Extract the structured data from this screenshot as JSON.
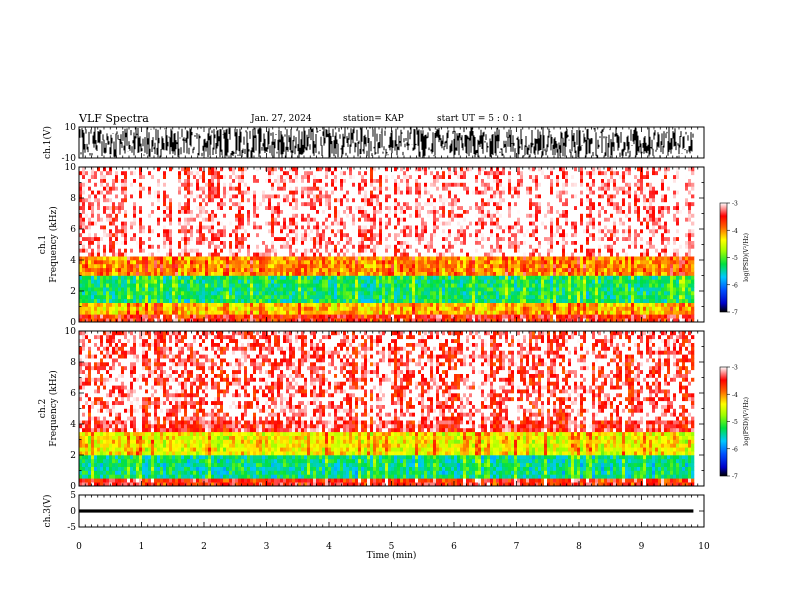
{
  "header": {
    "title": "VLF Spectra",
    "date": "Jan. 27, 2024",
    "station": "station= KAP",
    "start_ut": "start  UT =  5 : 0  : 1"
  },
  "chart_data": [
    {
      "type": "line",
      "name": "ch1-waveform",
      "ylabel": "ch.1(V)",
      "ylim": [
        -10,
        10
      ],
      "yticks": [
        "10",
        "-10"
      ],
      "xlim": [
        0,
        10
      ],
      "data_xrange": [
        0,
        9.83
      ],
      "description_values": {
        "typical_range": [
          -10,
          10
        ]
      }
    },
    {
      "type": "heatmap",
      "name": "ch1-spectrogram",
      "ylabel": "ch.1\nFrequency  (kHz)",
      "ylabel_lines": [
        "ch.1",
        "Frequency  (kHz)"
      ],
      "ylim": [
        0,
        10
      ],
      "yticks": [
        "0",
        "2",
        "4",
        "6",
        "8",
        "10"
      ],
      "xlim": [
        0,
        10
      ],
      "data_xrange": [
        0,
        9.83
      ],
      "colorbar": {
        "label": "log(PSD)(V²/Hz)",
        "range": [
          -7,
          -3
        ],
        "ticks": [
          "-3",
          "-4",
          "-5",
          "-6",
          "-7"
        ]
      },
      "bands": [
        {
          "freq_khz": [
            0,
            0.6
          ],
          "level": -3.6
        },
        {
          "freq_khz": [
            0.6,
            1.2
          ],
          "level": -4.2
        },
        {
          "freq_khz": [
            1.2,
            3.0
          ],
          "level": -5.3
        },
        {
          "freq_khz": [
            3.0,
            4.2
          ],
          "level": -4.0
        },
        {
          "freq_khz": [
            4.2,
            10
          ],
          "level": -3.2
        }
      ]
    },
    {
      "type": "heatmap",
      "name": "ch2-spectrogram",
      "ylabel": "ch.2\nFrequency  (kHz)",
      "ylabel_lines": [
        "ch.2",
        "Frequency  (kHz)"
      ],
      "ylim": [
        0,
        10
      ],
      "yticks": [
        "0",
        "2",
        "4",
        "6",
        "8",
        "10"
      ],
      "xlim": [
        0,
        10
      ],
      "data_xrange": [
        0,
        9.83
      ],
      "colorbar": {
        "label": "log(PSD)(V²/Hz)",
        "range": [
          -7,
          -3
        ],
        "ticks": [
          "-3",
          "-4",
          "-5",
          "-6",
          "-7"
        ]
      },
      "bands": [
        {
          "freq_khz": [
            0,
            0.6
          ],
          "level": -3.6
        },
        {
          "freq_khz": [
            0.6,
            2.0
          ],
          "level": -5.4
        },
        {
          "freq_khz": [
            2.0,
            3.6
          ],
          "level": -4.4
        },
        {
          "freq_khz": [
            3.6,
            10
          ],
          "level": -3.4
        }
      ]
    },
    {
      "type": "line",
      "name": "ch3-waveform",
      "ylabel": "ch.3(V)",
      "ylim": [
        -5,
        5
      ],
      "yticks": [
        "5",
        "0",
        "-5"
      ],
      "xlim": [
        0,
        10
      ],
      "data_xrange": [
        0,
        9.83
      ],
      "xlabel": "Time  (min)",
      "xticks": [
        "0",
        "1",
        "2",
        "3",
        "4",
        "5",
        "6",
        "7",
        "8",
        "9",
        "10"
      ],
      "description_values": {
        "typical_range": [
          -0.5,
          0.5
        ]
      }
    }
  ]
}
